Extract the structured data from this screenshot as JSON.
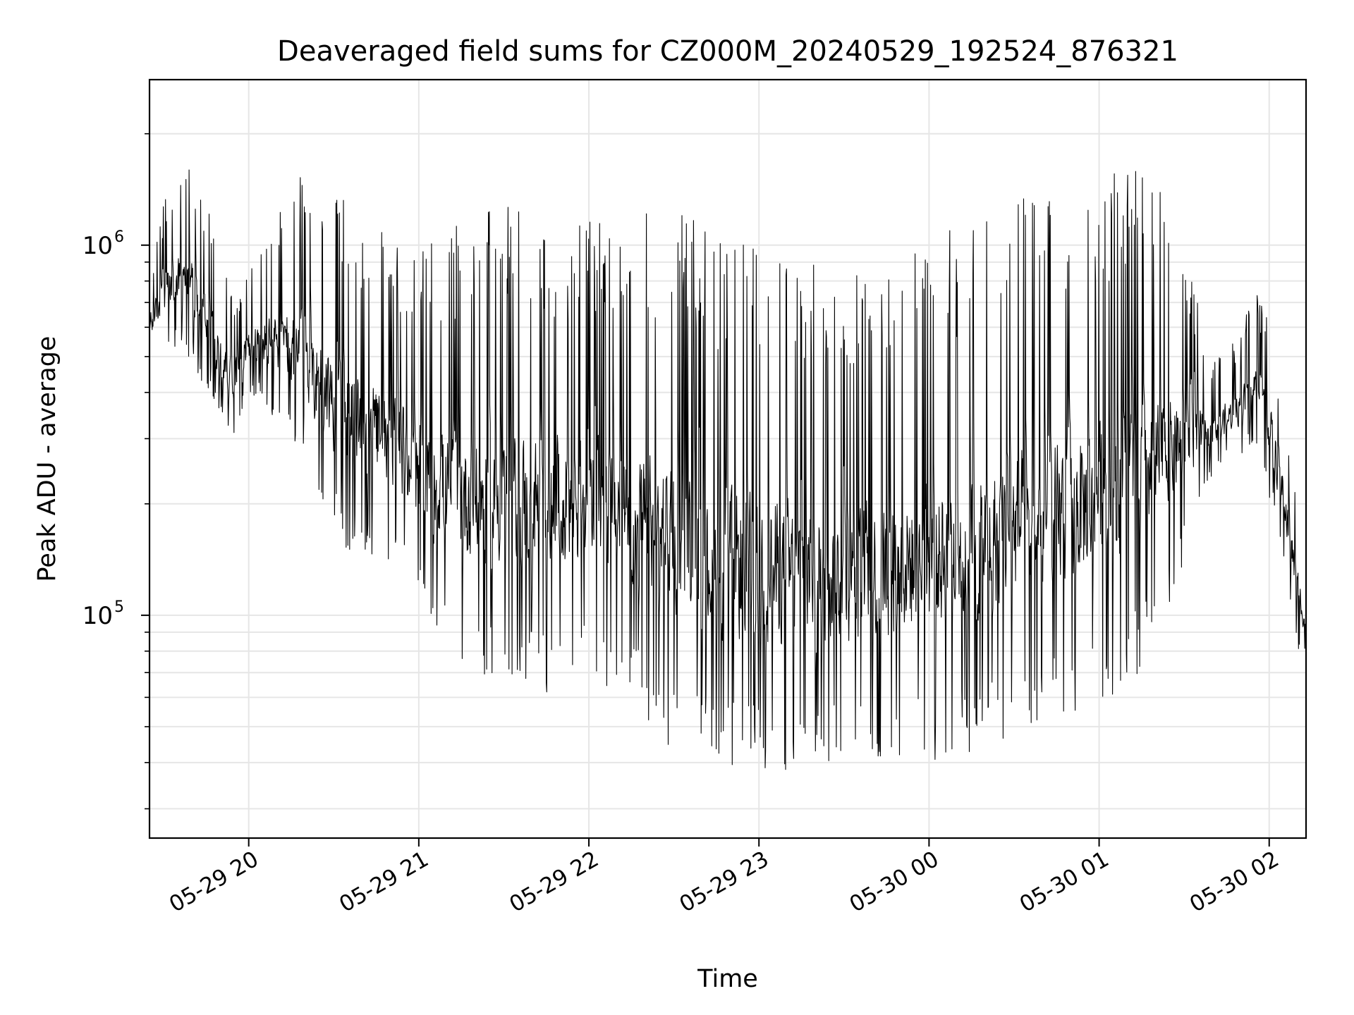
{
  "chart_data": {
    "type": "line",
    "title": "Deaveraged field sums for CZ000M_20240529_192524_876321",
    "xlabel": "Time",
    "ylabel": "Peak ADU - average",
    "yscale": "log",
    "ylim": [
      25000,
      2800000
    ],
    "xlim": [
      "2024-05-29 19:25",
      "2024-05-30 02:13"
    ],
    "grid": true,
    "line_color": "#000000",
    "grid_color": "#e6e6e6",
    "x_ticks": [
      {
        "value": "2024-05-29 20:00",
        "label": "05-29 20"
      },
      {
        "value": "2024-05-29 21:00",
        "label": "05-29 21"
      },
      {
        "value": "2024-05-29 22:00",
        "label": "05-29 22"
      },
      {
        "value": "2024-05-29 23:00",
        "label": "05-29 23"
      },
      {
        "value": "2024-05-30 00:00",
        "label": "05-30 00"
      },
      {
        "value": "2024-05-30 01:00",
        "label": "05-30 01"
      },
      {
        "value": "2024-05-30 02:00",
        "label": "05-30 02"
      }
    ],
    "y_ticks": [
      {
        "value": 100000,
        "base": "10",
        "exp": "5"
      },
      {
        "value": 1000000,
        "base": "10",
        "exp": "6"
      }
    ],
    "series": [
      {
        "x": [
          "2024-05-29 19:25",
          "2024-05-29 19:30",
          "2024-05-29 19:35",
          "2024-05-29 19:40",
          "2024-05-29 19:45",
          "2024-05-29 19:50",
          "2024-05-29 19:55",
          "2024-05-29 20:00",
          "2024-05-29 20:10",
          "2024-05-29 20:20",
          "2024-05-29 20:30",
          "2024-05-29 20:40",
          "2024-05-29 20:50",
          "2024-05-29 21:00",
          "2024-05-29 21:15",
          "2024-05-29 21:30",
          "2024-05-29 21:45",
          "2024-05-29 22:00",
          "2024-05-29 22:15",
          "2024-05-29 22:30",
          "2024-05-29 22:45",
          "2024-05-29 23:00",
          "2024-05-29 23:15",
          "2024-05-29 23:30",
          "2024-05-29 23:45",
          "2024-05-30 00:00",
          "2024-05-30 00:15",
          "2024-05-30 00:30",
          "2024-05-30 00:45",
          "2024-05-30 01:00",
          "2024-05-30 01:15",
          "2024-05-30 01:30",
          "2024-05-30 01:40",
          "2024-05-30 01:50",
          "2024-05-30 01:55",
          "2024-05-30 02:00",
          "2024-05-30 02:05",
          "2024-05-30 02:10",
          "2024-05-30 02:13"
        ],
        "lower": [
          500000,
          520000,
          550000,
          520000,
          420000,
          350000,
          320000,
          420000,
          350000,
          250000,
          180000,
          150000,
          150000,
          110000,
          80000,
          75000,
          70000,
          75000,
          65000,
          48000,
          45000,
          43000,
          43000,
          44000,
          45000,
          46000,
          48000,
          55000,
          58000,
          65000,
          80000,
          150000,
          250000,
          280000,
          300000,
          220000,
          150000,
          85000,
          80000
        ],
        "upper": [
          800000,
          1200000,
          1400000,
          1500000,
          1200000,
          800000,
          700000,
          800000,
          1100000,
          1400000,
          1200000,
          1000000,
          900000,
          800000,
          900000,
          1000000,
          950000,
          900000,
          950000,
          1000000,
          800000,
          750000,
          700000,
          650000,
          700000,
          800000,
          900000,
          1000000,
          1100000,
          1200000,
          1300000,
          900000,
          450000,
          550000,
          700000,
          600000,
          350000,
          200000,
          120000
        ]
      }
    ]
  }
}
